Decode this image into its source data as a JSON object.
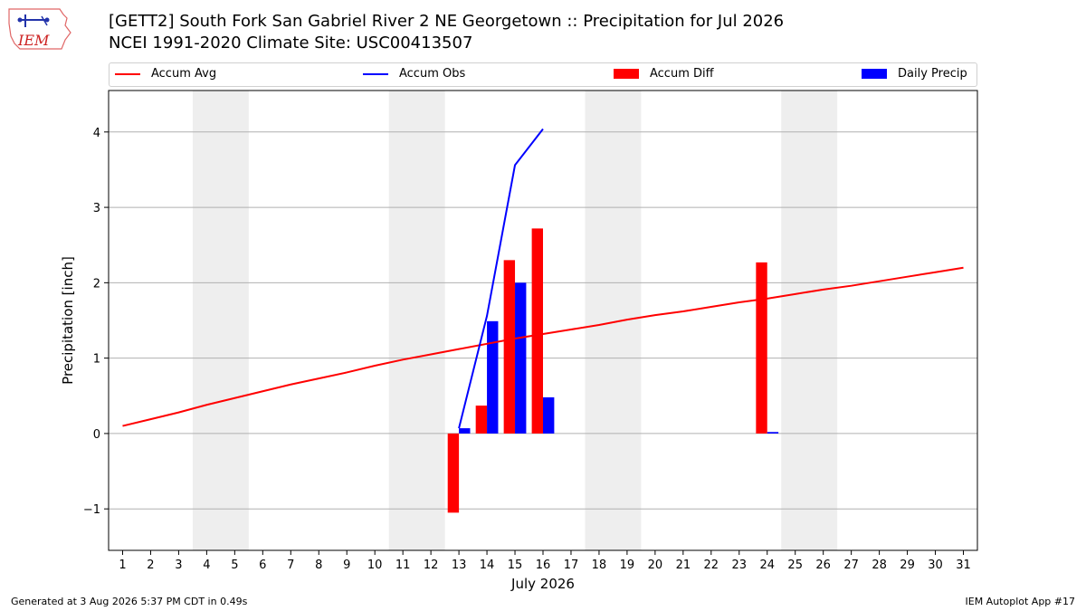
{
  "header": {
    "title_line1": "[GETT2] South Fork San Gabriel River 2 NE Georgetown :: Precipitation for Jul 2026",
    "title_line2": "NCEI 1991-2020 Climate Site: USC00413507",
    "logo_text": "IEM"
  },
  "footer": {
    "generated": "Generated at 3 Aug 2026 5:37 PM CDT in 0.49s",
    "app": "IEM Autoplot App #17"
  },
  "chart_data": {
    "type": "bar",
    "xlabel": "July 2026",
    "ylabel": "Precipitation [inch]",
    "xlim": [
      0.5,
      31.5
    ],
    "ylim": [
      -1.55,
      4.55
    ],
    "yticks": [
      -1,
      0,
      1,
      2,
      3,
      4
    ],
    "ytick_labels": [
      "−1",
      "0",
      "1",
      "2",
      "3",
      "4"
    ],
    "xticks": [
      1,
      2,
      3,
      4,
      5,
      6,
      7,
      8,
      9,
      10,
      11,
      12,
      13,
      14,
      15,
      16,
      17,
      18,
      19,
      20,
      21,
      22,
      23,
      24,
      25,
      26,
      27,
      28,
      29,
      30,
      31
    ],
    "grid": "horizontal",
    "legend_position": "top",
    "weekend_shading": [
      [
        3.5,
        5.5
      ],
      [
        10.5,
        12.5
      ],
      [
        17.5,
        19.5
      ],
      [
        24.5,
        26.5
      ]
    ],
    "shade_color": "#eeeeee",
    "legend": [
      {
        "name": "Accum Avg",
        "kind": "line",
        "color": "#ff0000"
      },
      {
        "name": "Accum Obs",
        "kind": "line",
        "color": "#0000ff"
      },
      {
        "name": "Accum Diff",
        "kind": "bar",
        "color": "#ff0000"
      },
      {
        "name": "Daily Precip",
        "kind": "bar",
        "color": "#0000ff"
      }
    ],
    "series": [
      {
        "name": "Accum Avg",
        "kind": "line",
        "color": "#ff0000",
        "x": [
          1,
          2,
          3,
          4,
          5,
          6,
          7,
          8,
          9,
          10,
          11,
          12,
          13,
          14,
          15,
          16,
          17,
          18,
          19,
          20,
          21,
          22,
          23,
          24,
          25,
          26,
          27,
          28,
          29,
          30,
          31
        ],
        "values": [
          0.1,
          0.19,
          0.28,
          0.38,
          0.47,
          0.56,
          0.65,
          0.73,
          0.81,
          0.9,
          0.98,
          1.05,
          1.12,
          1.19,
          1.26,
          1.32,
          1.38,
          1.44,
          1.51,
          1.57,
          1.62,
          1.68,
          1.74,
          1.79,
          1.85,
          1.91,
          1.96,
          2.02,
          2.08,
          2.14,
          2.2
        ]
      },
      {
        "name": "Accum Obs",
        "kind": "line",
        "color": "#0000ff",
        "x": [
          13,
          14,
          15,
          16
        ],
        "values": [
          0.07,
          1.56,
          3.56,
          4.04
        ]
      },
      {
        "name": "Accum Diff",
        "kind": "bar",
        "color": "#ff0000",
        "x": [
          13,
          14,
          15,
          16,
          24
        ],
        "values": [
          -1.05,
          0.37,
          2.3,
          2.72,
          2.27
        ]
      },
      {
        "name": "Daily Precip",
        "kind": "bar",
        "color": "#0000ff",
        "x": [
          13,
          14,
          15,
          16,
          24
        ],
        "values": [
          0.07,
          1.49,
          2.0,
          0.48,
          0.02
        ]
      }
    ]
  }
}
